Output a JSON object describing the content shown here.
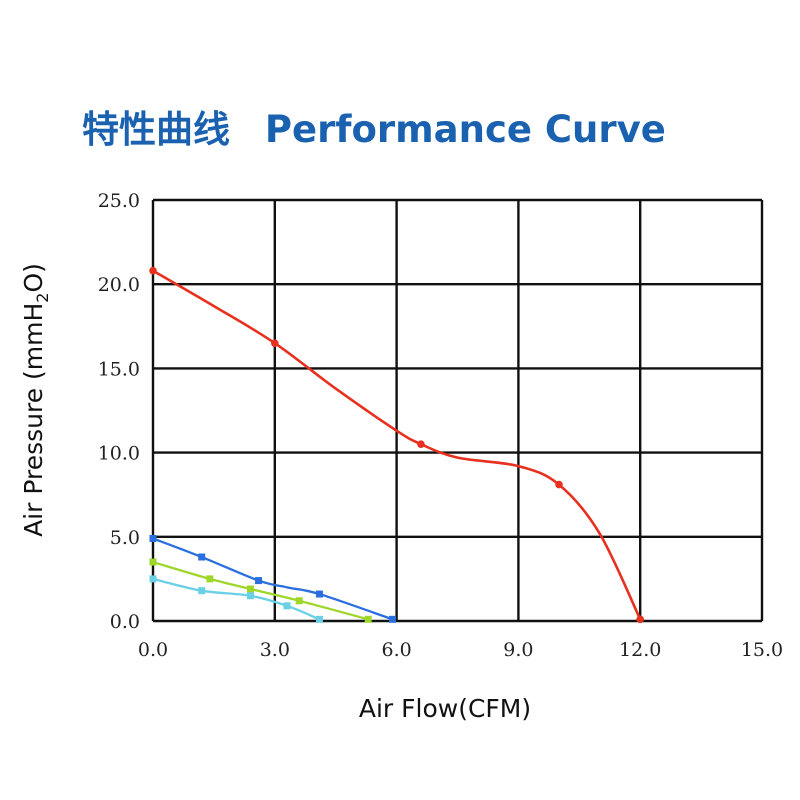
{
  "header": {
    "title_cn": "特性曲线",
    "title_en": "Performance Curve"
  },
  "chart_data": {
    "type": "line",
    "title": "特性曲线 Performance Curve",
    "xlabel": "Air Flow(CFM)",
    "ylabel_main": "Air Pressure (mmH",
    "ylabel_sub": "2",
    "ylabel_tail": "O)",
    "xlim": [
      0,
      15
    ],
    "ylim": [
      0,
      25
    ],
    "x_ticks": [
      0,
      3,
      6,
      9,
      12,
      15
    ],
    "x_tick_labels": [
      "0.0",
      "3.0",
      "6.0",
      "9.0",
      "12.0",
      "15.0"
    ],
    "y_ticks": [
      0,
      5,
      10,
      15,
      20,
      25
    ],
    "y_tick_labels": [
      "0.0",
      "5.0",
      "10.0",
      "15.0",
      "20.0",
      "25.0"
    ],
    "grid": true,
    "legend": "none",
    "series": [
      {
        "color": "#e8301e",
        "points": [
          [
            0.0,
            20.8
          ],
          [
            1.5,
            18.7
          ],
          [
            3.0,
            16.5
          ],
          [
            4.5,
            13.8
          ],
          [
            6.0,
            11.3
          ],
          [
            6.6,
            10.5
          ],
          [
            7.5,
            9.7
          ],
          [
            9.0,
            9.2
          ],
          [
            10.0,
            8.1
          ],
          [
            11.0,
            5.2
          ],
          [
            12.0,
            0.1
          ]
        ],
        "markers": [
          [
            0.0,
            20.8
          ],
          [
            3.0,
            16.5
          ],
          [
            6.6,
            10.5
          ],
          [
            10.0,
            8.1
          ],
          [
            12.0,
            0.1
          ]
        ]
      },
      {
        "color": "#2b6fde",
        "points": [
          [
            0.0,
            4.9
          ],
          [
            1.2,
            3.8
          ],
          [
            2.6,
            2.4
          ],
          [
            3.3,
            2.0
          ],
          [
            4.1,
            1.6
          ],
          [
            5.9,
            0.1
          ]
        ],
        "markers": [
          [
            0.0,
            4.9
          ],
          [
            1.2,
            3.8
          ],
          [
            2.6,
            2.4
          ],
          [
            4.1,
            1.6
          ],
          [
            5.9,
            0.1
          ]
        ]
      },
      {
        "color": "#9fd62a",
        "points": [
          [
            0.0,
            3.5
          ],
          [
            1.4,
            2.5
          ],
          [
            2.4,
            1.9
          ],
          [
            3.6,
            1.2
          ],
          [
            5.3,
            0.1
          ]
        ],
        "markers": [
          [
            0.0,
            3.5
          ],
          [
            1.4,
            2.5
          ],
          [
            2.4,
            1.9
          ],
          [
            3.6,
            1.2
          ],
          [
            5.3,
            0.1
          ]
        ]
      },
      {
        "color": "#69d0e6",
        "points": [
          [
            0.0,
            2.5
          ],
          [
            1.2,
            1.8
          ],
          [
            2.4,
            1.5
          ],
          [
            3.3,
            0.9
          ],
          [
            4.1,
            0.1
          ]
        ],
        "markers": [
          [
            0.0,
            2.5
          ],
          [
            1.2,
            1.8
          ],
          [
            2.4,
            1.5
          ],
          [
            3.3,
            0.9
          ],
          [
            4.1,
            0.1
          ]
        ]
      }
    ]
  }
}
